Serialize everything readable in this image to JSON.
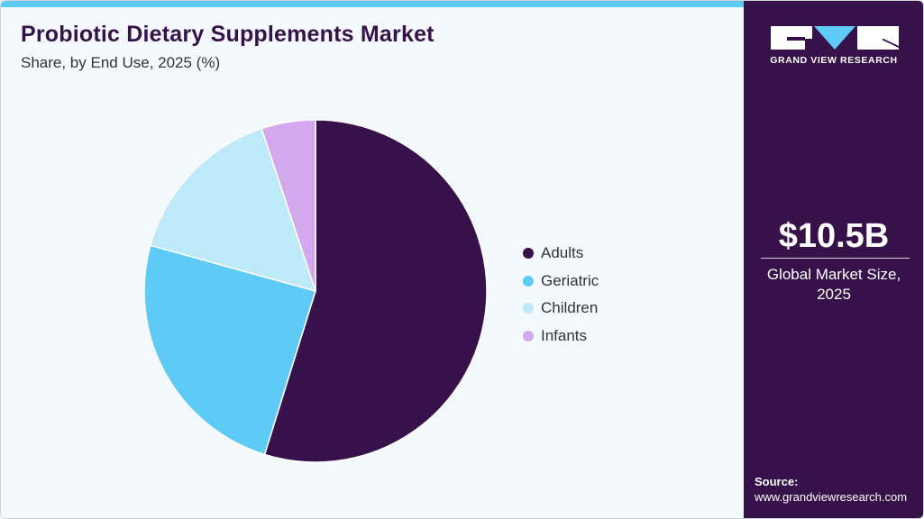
{
  "header": {
    "title": "Probiotic Dietary Supplements Market",
    "subtitle": "Share, by End Use, 2025 (%)"
  },
  "legend": {
    "items": [
      {
        "label": "Adults",
        "color": "#36114a"
      },
      {
        "label": "Geriatric",
        "color": "#5ecbf6"
      },
      {
        "label": "Children",
        "color": "#bde9f9"
      },
      {
        "label": "Infants",
        "color": "#d3a8ec"
      }
    ]
  },
  "sidebar": {
    "logo_text": "GRAND VIEW RESEARCH",
    "market_value": "$10.5B",
    "market_label_line1": "Global Market Size,",
    "market_label_line2": "2025",
    "source_title": "Source:",
    "source_url": "www.grandviewresearch.com"
  },
  "colors": {
    "accent_bar": "#5ecbf6",
    "brand_purple": "#36114a",
    "background": "#f3f9fc"
  },
  "chart_data": {
    "type": "pie",
    "title": "Probiotic Dietary Supplements Market",
    "subtitle": "Share, by End Use, 2025 (%)",
    "categories": [
      "Adults",
      "Geriatric",
      "Children",
      "Infants"
    ],
    "values": [
      54.8,
      24.5,
      15.6,
      5.1
    ],
    "colors": [
      "#36114a",
      "#5ecbf6",
      "#bde9f9",
      "#d3a8ec"
    ],
    "start_angle": "12 o'clock, clockwise",
    "legend_position": "right",
    "data_labels": false
  }
}
